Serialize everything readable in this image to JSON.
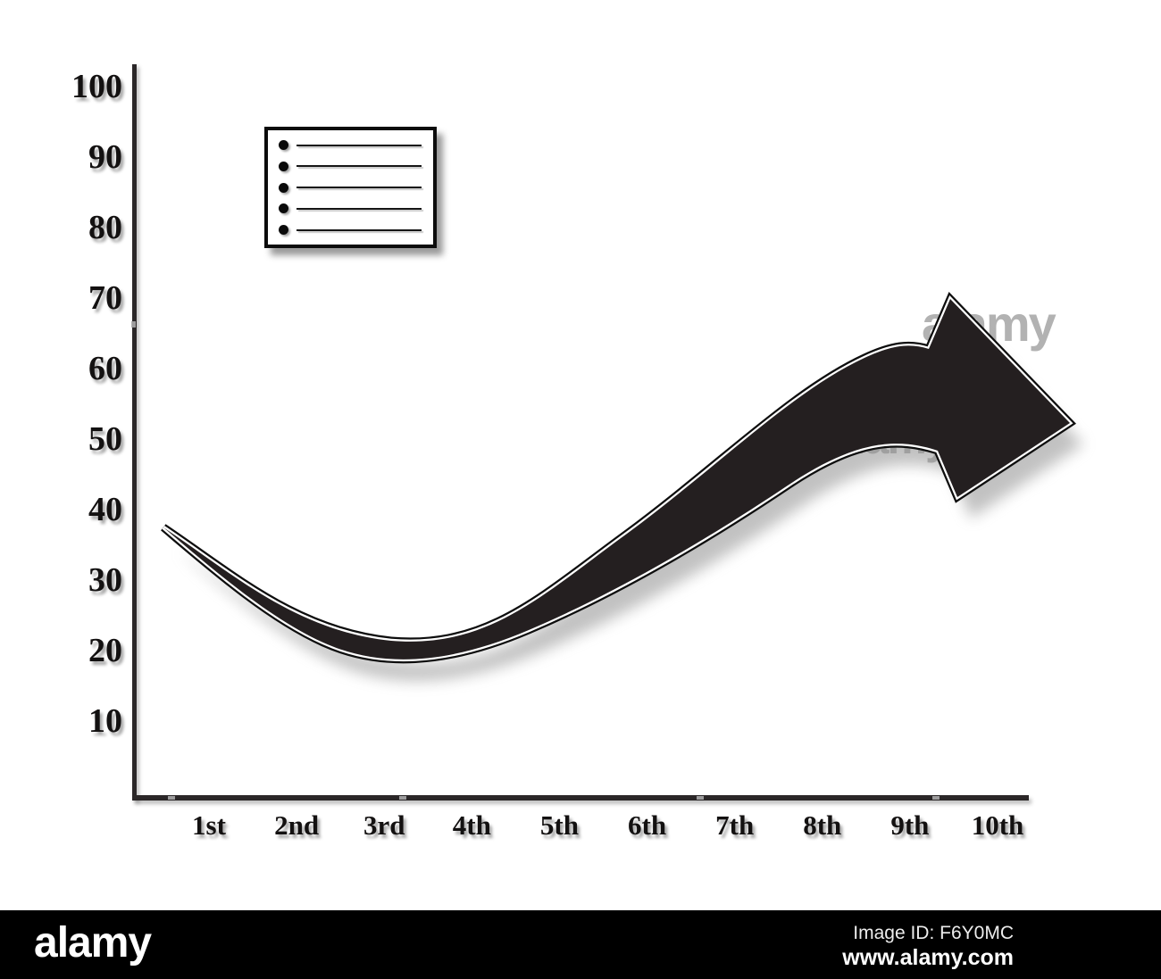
{
  "chart": {
    "y_ticks": [
      100,
      90,
      80,
      70,
      60,
      50,
      40,
      30,
      20,
      10
    ],
    "x_ticks": [
      "1st",
      "2nd",
      "3rd",
      "4th",
      "5th",
      "6th",
      "7th",
      "8th",
      "9th",
      "10th"
    ],
    "legend_rows": 5
  },
  "chart_data": {
    "type": "area",
    "categories": [
      "1st",
      "2nd",
      "3rd",
      "4th",
      "5th",
      "6th",
      "7th",
      "8th",
      "9th",
      "10th"
    ],
    "values": [
      32,
      21,
      20,
      23,
      28,
      35,
      46,
      52,
      56,
      53
    ],
    "series": [
      {
        "name": "swoosh-arrow-trend",
        "values": [
          32,
          21,
          20,
          23,
          28,
          35,
          46,
          52,
          56,
          53
        ],
        "style": "thick black swoosh band ending in large arrowhead pointing right, dips near 2nd-3rd then rises"
      }
    ],
    "title": "",
    "xlabel": "",
    "ylabel": "",
    "ylim": [
      0,
      100
    ],
    "y_tick_step": 10,
    "grid": false,
    "legend": {
      "position": "top-left",
      "items": 5,
      "labels_visible": false,
      "note": "blank legend placeholder box with 5 bullet lines"
    }
  },
  "watermark": {
    "text": "alamy",
    "color": "#9f9f9f"
  },
  "footer": {
    "brand": "alamy",
    "image_id": "Image ID: F6Y0MC",
    "url": "www.alamy.com",
    "bg": "#000000"
  },
  "colors": {
    "arrow_fill": "#241f20",
    "arrow_outline": "#0d0d0d",
    "axis": "#2b2728",
    "background": "#ffffff",
    "label_text": "#131111"
  }
}
